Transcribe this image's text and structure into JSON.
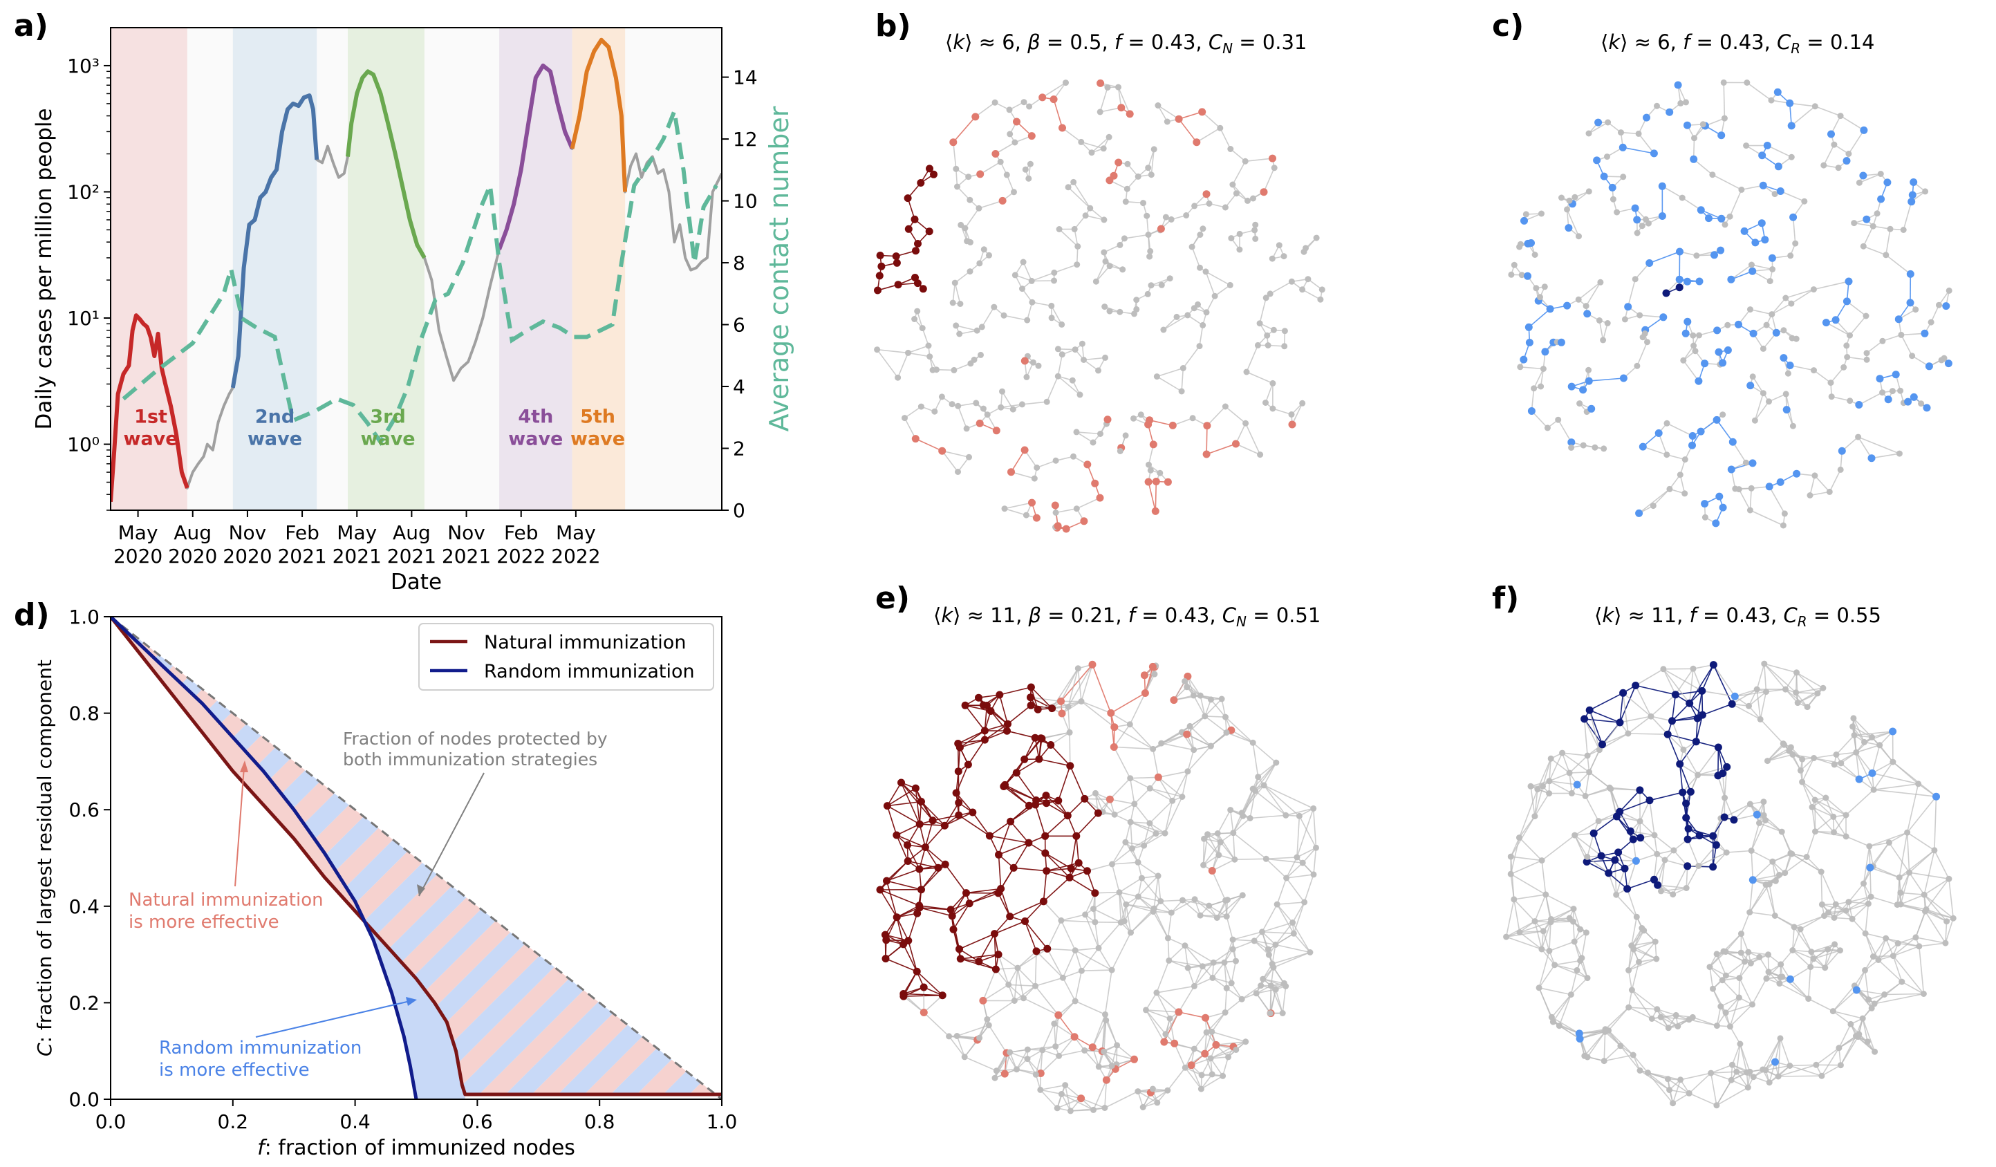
{
  "panel_labels": {
    "a": "a)",
    "b": "b)",
    "c": "c)",
    "d": "d)",
    "e": "e)",
    "f": "f)"
  },
  "chart_data": [
    {
      "id": "a",
      "type": "line",
      "xlabel": "Date",
      "ylabel": "Daily cases per million people",
      "ylabel_right": "Average contact number",
      "y_scale": "log",
      "ylim": [
        0.3,
        2000
      ],
      "ylim_right": [
        0,
        15.6
      ],
      "yticks_left": [
        {
          "v": 1,
          "label": "10⁰"
        },
        {
          "v": 10,
          "label": "10¹"
        },
        {
          "v": 100,
          "label": "10²"
        },
        {
          "v": 1000,
          "label": "10³"
        }
      ],
      "yticks_right": [
        0,
        2,
        4,
        6,
        8,
        10,
        12,
        14
      ],
      "x_range_months": [
        0,
        33.5
      ],
      "xticks": [
        {
          "m": 1.5,
          "line1": "May",
          "line2": "2020"
        },
        {
          "m": 4.5,
          "line1": "Aug",
          "line2": "2020"
        },
        {
          "m": 7.5,
          "line1": "Nov",
          "line2": "2020"
        },
        {
          "m": 10.5,
          "line1": "Feb",
          "line2": "2021"
        },
        {
          "m": 13.5,
          "line1": "May",
          "line2": "2021"
        },
        {
          "m": 16.5,
          "line1": "Aug",
          "line2": "2021"
        },
        {
          "m": 19.5,
          "line1": "Nov",
          "line2": "2021"
        },
        {
          "m": 22.5,
          "line1": "Feb",
          "line2": "2022"
        },
        {
          "m": 25.5,
          "line1": "May",
          "line2": "2022"
        }
      ],
      "waves": [
        {
          "label1": "1st",
          "label2": "wave",
          "start": 0,
          "end": 4.2,
          "band": "#f6e1e1",
          "line": "#c62828",
          "lx": 2.2,
          "ly": 0.75
        },
        {
          "label1": "2nd",
          "label2": "wave",
          "start": 6.7,
          "end": 11.3,
          "band": "#e3ecf3",
          "line": "#4a74a8",
          "lx": 9.0,
          "ly": 0.75
        },
        {
          "label1": "3rd",
          "label2": "wave",
          "start": 13.0,
          "end": 17.2,
          "band": "#e6f0e0",
          "line": "#6aa84f",
          "lx": 15.2,
          "ly": 0.75
        },
        {
          "label1": "4th",
          "label2": "wave",
          "start": 21.3,
          "end": 25.3,
          "band": "#ece4ee",
          "line": "#8a4e99",
          "lx": 23.3,
          "ly": 0.75
        },
        {
          "label1": "5th",
          "label2": "wave",
          "start": 25.3,
          "end": 28.2,
          "band": "#fbe9d9",
          "line": "#de7a22",
          "lx": 26.7,
          "ly": 0.75
        }
      ],
      "series": [
        {
          "name": "Daily cases per million people",
          "color": "#a0a0a0",
          "axis": "left",
          "points": [
            [
              0.0,
              0.35
            ],
            [
              0.2,
              0.9
            ],
            [
              0.4,
              2.5
            ],
            [
              0.7,
              3.6
            ],
            [
              1.0,
              4.2
            ],
            [
              1.2,
              8.0
            ],
            [
              1.4,
              10.5
            ],
            [
              1.6,
              9.8
            ],
            [
              1.8,
              9.0
            ],
            [
              2.0,
              8.5
            ],
            [
              2.2,
              7.0
            ],
            [
              2.4,
              5.0
            ],
            [
              2.6,
              7.5
            ],
            [
              2.8,
              4.0
            ],
            [
              3.0,
              3.0
            ],
            [
              3.3,
              2.0
            ],
            [
              3.6,
              1.2
            ],
            [
              3.9,
              0.6
            ],
            [
              4.2,
              0.45
            ],
            [
              4.5,
              0.6
            ],
            [
              4.8,
              0.7
            ],
            [
              5.1,
              0.8
            ],
            [
              5.3,
              1.0
            ],
            [
              5.6,
              0.9
            ],
            [
              5.9,
              1.5
            ],
            [
              6.2,
              2.0
            ],
            [
              6.5,
              2.5
            ],
            [
              6.7,
              2.8
            ],
            [
              7.0,
              5.0
            ],
            [
              7.3,
              25.0
            ],
            [
              7.6,
              55.0
            ],
            [
              7.9,
              60.0
            ],
            [
              8.2,
              90.0
            ],
            [
              8.5,
              100.0
            ],
            [
              8.8,
              130.0
            ],
            [
              9.1,
              150.0
            ],
            [
              9.4,
              300.0
            ],
            [
              9.7,
              450.0
            ],
            [
              10.0,
              500.0
            ],
            [
              10.3,
              480.0
            ],
            [
              10.6,
              560.0
            ],
            [
              10.9,
              580.0
            ],
            [
              11.1,
              450.0
            ],
            [
              11.3,
              180.0
            ],
            [
              11.6,
              170.0
            ],
            [
              11.9,
              230.0
            ],
            [
              12.2,
              170.0
            ],
            [
              12.5,
              130.0
            ],
            [
              12.8,
              140.0
            ],
            [
              13.0,
              190.0
            ],
            [
              13.2,
              350.0
            ],
            [
              13.5,
              600.0
            ],
            [
              13.8,
              800.0
            ],
            [
              14.1,
              900.0
            ],
            [
              14.4,
              850.0
            ],
            [
              14.8,
              600.0
            ],
            [
              15.2,
              350.0
            ],
            [
              15.6,
              200.0
            ],
            [
              16.0,
              110.0
            ],
            [
              16.4,
              60.0
            ],
            [
              16.8,
              38.0
            ],
            [
              17.2,
              30.0
            ],
            [
              17.6,
              20.0
            ],
            [
              18.0,
              8.0
            ],
            [
              18.4,
              5.0
            ],
            [
              18.8,
              3.2
            ],
            [
              19.2,
              4.0
            ],
            [
              19.6,
              4.5
            ],
            [
              20.0,
              6.5
            ],
            [
              20.4,
              10.0
            ],
            [
              20.8,
              18.0
            ],
            [
              21.3,
              35.0
            ],
            [
              21.7,
              50.0
            ],
            [
              22.1,
              80.0
            ],
            [
              22.5,
              150.0
            ],
            [
              22.9,
              350.0
            ],
            [
              23.3,
              800.0
            ],
            [
              23.7,
              1000.0
            ],
            [
              24.1,
              900.0
            ],
            [
              24.5,
              500.0
            ],
            [
              24.9,
              300.0
            ],
            [
              25.3,
              220.0
            ],
            [
              25.7,
              400.0
            ],
            [
              26.1,
              900.0
            ],
            [
              26.5,
              1300.0
            ],
            [
              26.9,
              1600.0
            ],
            [
              27.3,
              1400.0
            ],
            [
              27.7,
              800.0
            ],
            [
              28.0,
              400.0
            ],
            [
              28.2,
              100.0
            ],
            [
              28.5,
              160.0
            ],
            [
              28.8,
              200.0
            ],
            [
              29.1,
              130.0
            ],
            [
              29.4,
              170.0
            ],
            [
              29.7,
              190.0
            ],
            [
              30.0,
              140.0
            ],
            [
              30.3,
              150.0
            ],
            [
              30.6,
              100.0
            ],
            [
              30.9,
              40.0
            ],
            [
              31.2,
              55.0
            ],
            [
              31.5,
              30.0
            ],
            [
              31.8,
              24.0
            ],
            [
              32.1,
              25.0
            ],
            [
              32.4,
              28.0
            ],
            [
              32.7,
              30.0
            ],
            [
              33.0,
              100.0
            ],
            [
              33.5,
              140.0
            ]
          ]
        },
        {
          "name": "Average contact number",
          "color": "#5fb89a",
          "axis": "right",
          "dashed": true,
          "points": [
            [
              0.7,
              3.6
            ],
            [
              2.5,
              4.5
            ],
            [
              4.5,
              5.4
            ],
            [
              6.2,
              7.0
            ],
            [
              6.6,
              7.8
            ],
            [
              7.2,
              6.2
            ],
            [
              8.0,
              5.9
            ],
            [
              9.0,
              5.6
            ],
            [
              10.0,
              2.9
            ],
            [
              11.2,
              3.2
            ],
            [
              12.4,
              3.6
            ],
            [
              13.3,
              3.4
            ],
            [
              14.1,
              2.8
            ],
            [
              14.8,
              2.2
            ],
            [
              15.6,
              3.0
            ],
            [
              16.3,
              4.0
            ],
            [
              17.0,
              5.5
            ],
            [
              17.8,
              6.8
            ],
            [
              18.5,
              7.0
            ],
            [
              19.3,
              8.0
            ],
            [
              20.3,
              9.8
            ],
            [
              20.8,
              10.5
            ],
            [
              21.3,
              8.0
            ],
            [
              22.0,
              5.5
            ],
            [
              22.8,
              5.8
            ],
            [
              23.7,
              6.1
            ],
            [
              24.6,
              5.9
            ],
            [
              25.4,
              5.6
            ],
            [
              26.1,
              5.6
            ],
            [
              26.8,
              5.8
            ],
            [
              27.5,
              6.0
            ],
            [
              28.0,
              8.0
            ],
            [
              28.7,
              10.5
            ],
            [
              29.5,
              11.2
            ],
            [
              30.3,
              12.0
            ],
            [
              30.9,
              12.9
            ],
            [
              31.4,
              11.0
            ],
            [
              32.0,
              8.0
            ],
            [
              32.5,
              9.8
            ],
            [
              33.2,
              10.5
            ]
          ]
        }
      ]
    },
    {
      "id": "d",
      "type": "line",
      "xlabel_var": "f",
      "xlabel": ": fraction of immunized nodes",
      "ylabel_var": "C",
      "ylabel": ": fraction of largest residual component",
      "xlim": [
        0,
        1.0
      ],
      "ylim": [
        0,
        1.0
      ],
      "xticks": [
        0.0,
        0.2,
        0.4,
        0.6,
        0.8,
        1.0
      ],
      "yticks": [
        0.0,
        0.2,
        0.4,
        0.6,
        0.8,
        1.0
      ],
      "legend": {
        "position": "top-right",
        "items": [
          "Natural immunization",
          "Random immunization"
        ]
      },
      "series": [
        {
          "name": "Natural immunization",
          "color": "#7b1515",
          "points": [
            [
              0,
              1.0
            ],
            [
              0.05,
              0.92
            ],
            [
              0.1,
              0.84
            ],
            [
              0.15,
              0.76
            ],
            [
              0.2,
              0.68
            ],
            [
              0.25,
              0.61
            ],
            [
              0.3,
              0.54
            ],
            [
              0.35,
              0.46
            ],
            [
              0.4,
              0.39
            ],
            [
              0.45,
              0.32
            ],
            [
              0.5,
              0.25
            ],
            [
              0.53,
              0.2
            ],
            [
              0.55,
              0.16
            ],
            [
              0.565,
              0.1
            ],
            [
              0.575,
              0.03
            ],
            [
              0.58,
              0.01
            ],
            [
              1.0,
              0.01
            ]
          ]
        },
        {
          "name": "Random immunization",
          "color": "#111c8c",
          "points": [
            [
              0,
              1.0
            ],
            [
              0.05,
              0.94
            ],
            [
              0.1,
              0.88
            ],
            [
              0.15,
              0.82
            ],
            [
              0.2,
              0.75
            ],
            [
              0.25,
              0.68
            ],
            [
              0.3,
              0.6
            ],
            [
              0.35,
              0.51
            ],
            [
              0.4,
              0.41
            ],
            [
              0.43,
              0.33
            ],
            [
              0.46,
              0.22
            ],
            [
              0.48,
              0.13
            ],
            [
              0.49,
              0.07
            ],
            [
              0.5,
              0.0
            ]
          ]
        },
        {
          "name": "diagonal",
          "color": "#777777",
          "dashed": true,
          "points": [
            [
              0,
              1.0
            ],
            [
              1.0,
              0.0
            ]
          ]
        }
      ],
      "annotations": {
        "protected1": "Fraction of nodes protected by",
        "protected2": "both immunization strategies",
        "natural1": "Natural immunization",
        "natural2": "is more effective",
        "random1": "Random immunization",
        "random2": "is more effective"
      },
      "colors": {
        "natural_fill": "#f6d2cf",
        "random_fill": "#c8d9f7",
        "natural_text": "#e07a6e",
        "random_text": "#4a82e6",
        "protected_text": "#808080"
      }
    }
  ],
  "networks": {
    "b": {
      "title": {
        "k": "≈ 6,",
        "beta_label": "β",
        "beta": "= 0.5,",
        "f_label": "f",
        "f": "= 0.43,",
        "c_sub": "N",
        "c": "= 0.31"
      },
      "degree": 6,
      "seed": 11,
      "mode": "natural",
      "strong": "#7a0c0c",
      "light": "#e07a6e"
    },
    "c": {
      "title": {
        "k": "≈ 6,",
        "f_label": "f",
        "f": "= 0.43,",
        "c_sub": "R",
        "c": "= 0.14"
      },
      "degree": 6,
      "seed": 23,
      "mode": "random",
      "strong": "#0e1a7a",
      "light": "#5495f0"
    },
    "e": {
      "title": {
        "k": "≈ 11,",
        "beta_label": "β",
        "beta": "= 0.21,",
        "f_label": "f",
        "f": "= 0.43,",
        "c_sub": "N",
        "c": "= 0.51"
      },
      "degree": 11,
      "seed": 37,
      "mode": "natural",
      "strong": "#7a0c0c",
      "light": "#e07a6e"
    },
    "f": {
      "title": {
        "k": "≈ 11,",
        "f_label": "f",
        "f": "= 0.43,",
        "c_sub": "R",
        "c": "= 0.55"
      },
      "degree": 11,
      "seed": 53,
      "mode": "random",
      "strong": "#0e1a7a",
      "light": "#5495f0"
    }
  }
}
